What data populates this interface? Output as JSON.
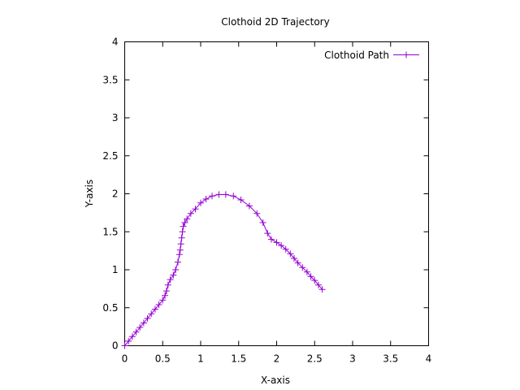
{
  "chart_data": {
    "type": "line",
    "title": "Clothoid 2D Trajectory",
    "xlabel": "X-axis",
    "ylabel": "Y-axis",
    "xlim": [
      0,
      4
    ],
    "ylim": [
      0,
      4
    ],
    "xticks": [
      "0",
      "0.5",
      "1",
      "1.5",
      "2",
      "2.5",
      "3",
      "3.5",
      "4"
    ],
    "yticks": [
      "0",
      "0.5",
      "1",
      "1.5",
      "2",
      "2.5",
      "3",
      "3.5",
      "4"
    ],
    "grid": false,
    "legend_position": "top-right",
    "series": [
      {
        "name": "Clothoid Path",
        "color": "#9400d3",
        "marker": "plus",
        "x": [
          0.0,
          0.05,
          0.1,
          0.15,
          0.2,
          0.25,
          0.3,
          0.35,
          0.4,
          0.45,
          0.5,
          0.53,
          0.55,
          0.57,
          0.6,
          0.64,
          0.67,
          0.7,
          0.72,
          0.73,
          0.74,
          0.75,
          0.76,
          0.77,
          0.79,
          0.82,
          0.87,
          0.93,
          1.0,
          1.07,
          1.15,
          1.24,
          1.33,
          1.43,
          1.53,
          1.64,
          1.74,
          1.82,
          1.88,
          1.93,
          2.0,
          2.06,
          2.12,
          2.18,
          2.23,
          2.28,
          2.34,
          2.4,
          2.45,
          2.5,
          2.55,
          2.6
        ],
        "y": [
          0.0,
          0.06,
          0.12,
          0.18,
          0.24,
          0.3,
          0.36,
          0.42,
          0.48,
          0.54,
          0.6,
          0.66,
          0.72,
          0.8,
          0.87,
          0.93,
          1.0,
          1.1,
          1.2,
          1.26,
          1.34,
          1.42,
          1.5,
          1.57,
          1.62,
          1.67,
          1.74,
          1.8,
          1.88,
          1.93,
          1.97,
          1.99,
          1.99,
          1.97,
          1.92,
          1.84,
          1.74,
          1.62,
          1.48,
          1.4,
          1.36,
          1.32,
          1.27,
          1.21,
          1.15,
          1.09,
          1.03,
          0.97,
          0.91,
          0.86,
          0.8,
          0.74
        ]
      }
    ]
  }
}
